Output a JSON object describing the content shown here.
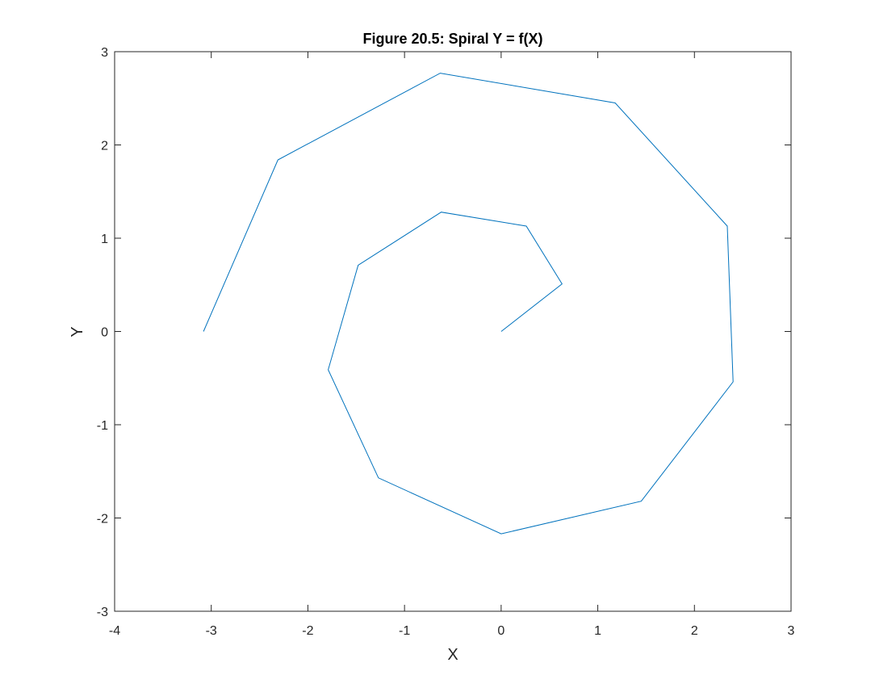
{
  "chart_data": {
    "type": "line",
    "title": "Figure 20.5: Spiral Y = f(X)",
    "xlabel": "X",
    "ylabel": "Y",
    "xlim": [
      -4,
      3
    ],
    "ylim": [
      -3,
      3
    ],
    "xticks": [
      -4,
      -3,
      -2,
      -1,
      0,
      1,
      2,
      3
    ],
    "yticks": [
      -3,
      -2,
      -1,
      0,
      1,
      2,
      3
    ],
    "xtick_labels": [
      "-4",
      "-3",
      "-2",
      "-1",
      "0",
      "1",
      "2",
      "3"
    ],
    "ytick_labels": [
      "-3",
      "-2",
      "-1",
      "0",
      "1",
      "2",
      "3"
    ],
    "grid": false,
    "box": true,
    "series": [
      {
        "color": "#0072BD",
        "x": [
          0,
          0.63,
          0.26,
          -0.62,
          -1.48,
          -1.79,
          -1.27,
          0,
          1.45,
          2.4,
          2.34,
          1.18,
          -0.63,
          -2.31,
          -3.08
        ],
        "y": [
          0,
          0.51,
          1.13,
          1.28,
          0.71,
          -0.41,
          -1.57,
          -2.17,
          -1.82,
          -0.54,
          1.13,
          2.45,
          2.77,
          1.84,
          0
        ]
      }
    ]
  }
}
